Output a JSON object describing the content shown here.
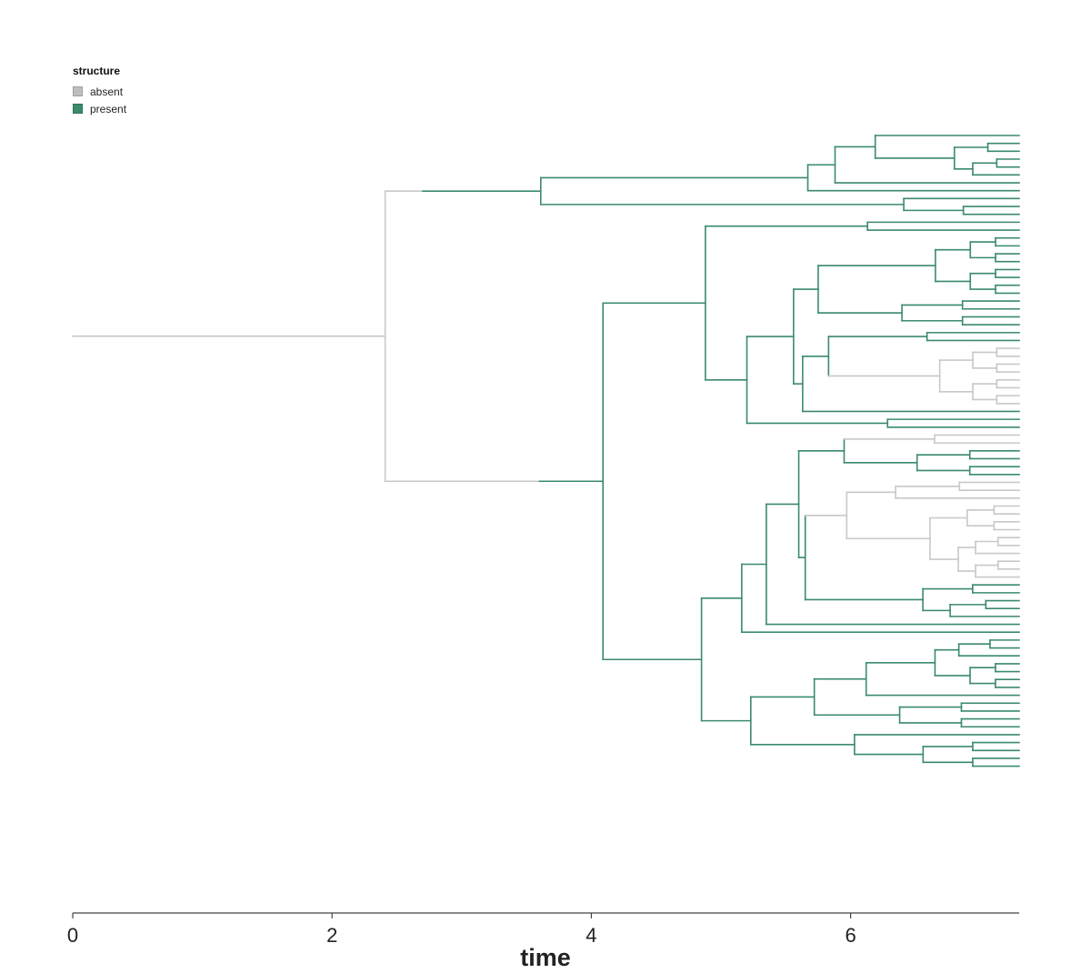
{
  "legend": {
    "title": "structure",
    "items": [
      {
        "label": "absent",
        "color": "#bebebe",
        "swatch_border": "#a0a0a0"
      },
      {
        "label": "present",
        "color": "#3a8a6c",
        "swatch_border": "#2f7358"
      }
    ]
  },
  "colors": {
    "absent": "#c8c8c8",
    "present": "#3a8a6c",
    "axis": "#444444",
    "text": "#222222"
  },
  "axis": {
    "title": "time",
    "ticks": [
      {
        "value": 0,
        "label": "0"
      },
      {
        "value": 2,
        "label": "2"
      },
      {
        "value": 4,
        "label": "4"
      },
      {
        "value": 6,
        "label": "6"
      }
    ]
  },
  "chart_data": {
    "type": "phylogenetic-tree",
    "x_axis_label": "time",
    "xlim": [
      0,
      7.3
    ],
    "root_time": 0,
    "tip_time": 7.3,
    "tip_count": 98,
    "first_split_time": 2.41,
    "trait": "structure",
    "trait_states": [
      "absent",
      "present"
    ],
    "root_state": "absent",
    "state_shift": {
      "from": "absent",
      "to": "present",
      "approximate_time": 2.7
    }
  }
}
